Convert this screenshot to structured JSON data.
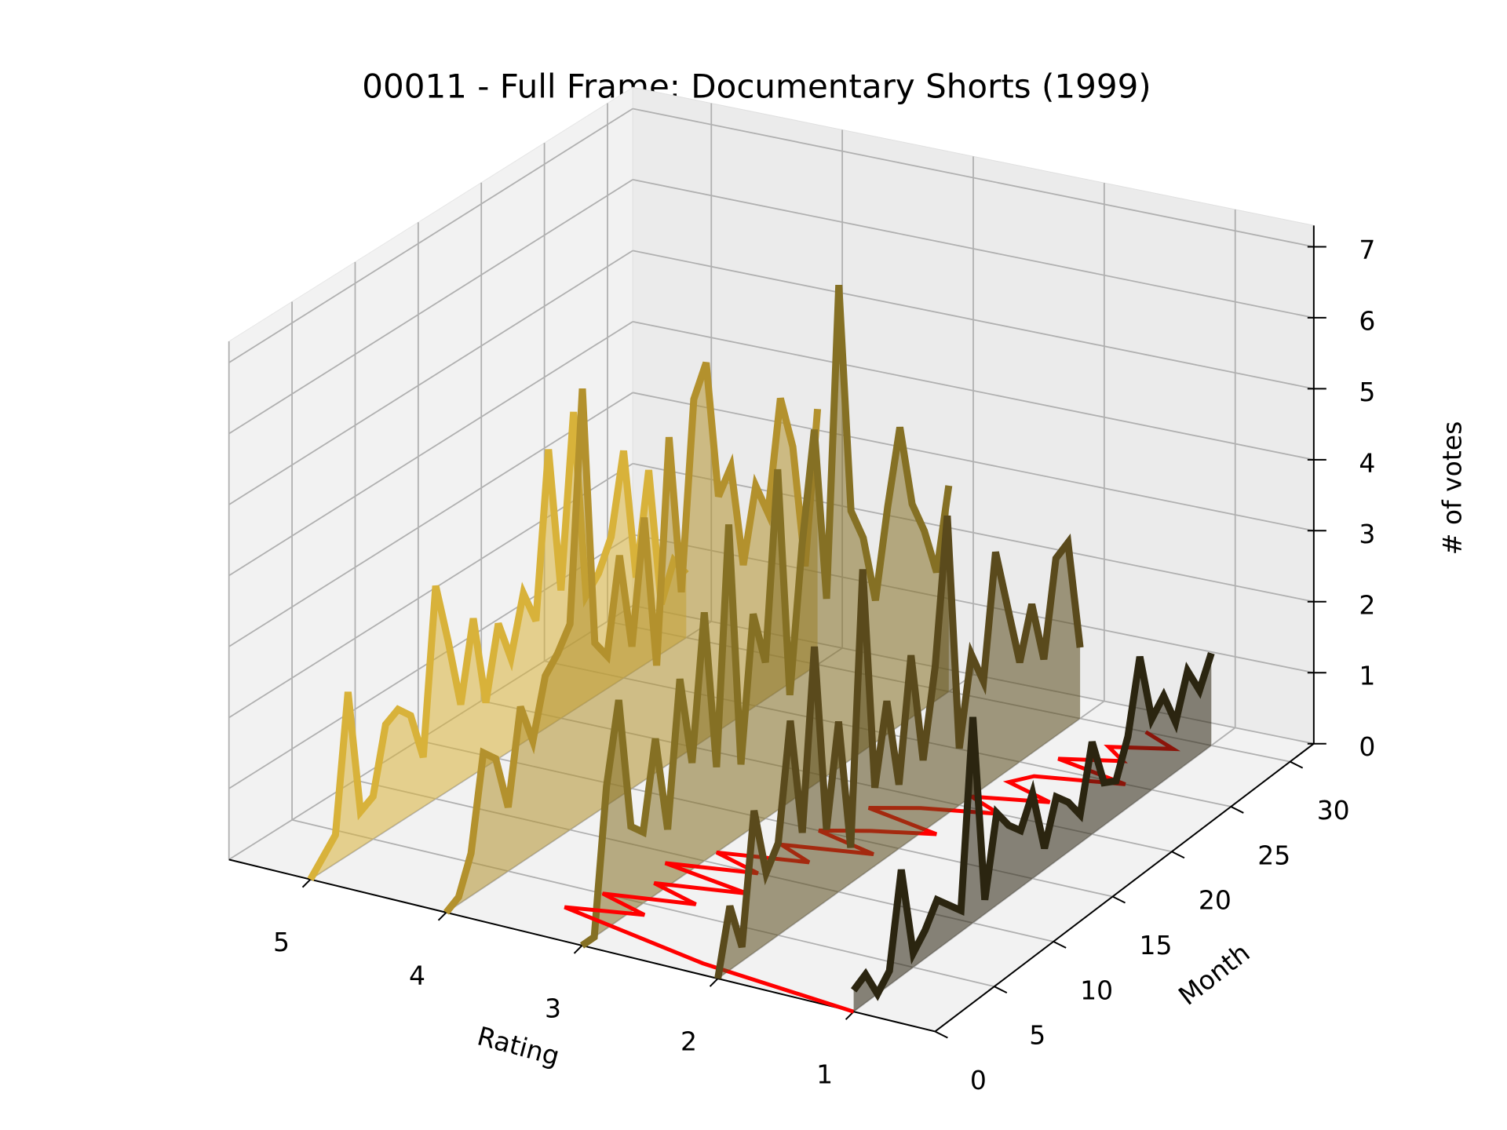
{
  "chart_data": {
    "type": "line3d",
    "title": "00011 - Full Frame: Documentary Shorts (1999)",
    "xlabel": "Rating",
    "ylabel": "Month",
    "zlabel": "# of votes",
    "xlim": [
      0.4,
      5.6
    ],
    "xticks": [
      1,
      2,
      3,
      4,
      5
    ],
    "ylim": [
      0,
      32
    ],
    "yticks": [
      0,
      5,
      10,
      15,
      20,
      25,
      30
    ],
    "zlim": [
      0,
      7.3
    ],
    "zticks": [
      0,
      1,
      2,
      3,
      4,
      5,
      6,
      7
    ],
    "grid": true,
    "x": [
      0,
      1,
      2,
      3,
      4,
      5,
      6,
      7,
      8,
      9,
      10,
      11,
      12,
      13,
      14,
      15,
      16,
      17,
      18,
      19,
      20,
      21,
      22,
      23,
      24,
      25,
      26,
      27,
      28,
      29,
      30
    ],
    "series": [
      {
        "rating": 5,
        "color": "#d8b23a",
        "values": [
          0,
          0.2,
          0.4,
          2.3,
          0.5,
          0.6,
          1.5,
          1.6,
          1.4,
          0.7,
          3.0,
          2.1,
          1.1,
          2.2,
          0.9,
          1.9,
          1.3,
          2.1,
          1.6,
          3.9,
          1.8,
          4.2,
          1.5,
          1.7,
          2.1,
          3.2,
          1.3,
          2.7,
          0.7,
          1.2,
          0.9
        ]
      },
      {
        "rating": 4,
        "color": "#b3912d",
        "values": [
          0,
          0.1,
          0.6,
          1.9,
          1.7,
          0.9,
          2.2,
          1.6,
          2.4,
          2.6,
          2.9,
          6.1,
          2.4,
          2.1,
          3.4,
          2.0,
          3.7,
          1.5,
          4.6,
          2.3,
          4.9,
          5.3,
          3.3,
          3.6,
          2.1,
          3.1,
          2.6,
          4.1,
          3.3,
          1.5,
          3.6
        ]
      },
      {
        "rating": 3,
        "color": "#857024",
        "values": [
          0,
          0,
          2.0,
          3.1,
          1.2,
          1.0,
          2.2,
          0.8,
          2.8,
          1.5,
          3.5,
          1.2,
          4.5,
          1.0,
          3.0,
          2.2,
          4.8,
          1.5,
          3.5,
          5.0,
          2.5,
          6.8,
          3.5,
          3.0,
          2.0,
          3.2,
          4.2,
          3.0,
          2.5,
          1.8,
          2.9
        ]
      },
      {
        "rating": 2,
        "color": "#5a4a1c",
        "values": [
          0,
          0.9,
          0.2,
          2.0,
          1.0,
          1.3,
          2.9,
          1.2,
          3.7,
          1.0,
          2.4,
          0.5,
          4.3,
          1.1,
          2.2,
          0.9,
          2.6,
          1.0,
          2.2,
          4.2,
          0.8,
          2.0,
          1.5,
          3.2,
          2.3,
          1.4,
          2.1,
          1.2,
          2.5,
          2.6,
          1.0
        ]
      },
      {
        "rating": 1,
        "color": "#2b2510",
        "values": [
          0.3,
          0.4,
          0,
          0.2,
          1.5,
          0.2,
          0.4,
          0.7,
          0.5,
          0.3,
          2.9,
          0.2,
          1.3,
          1.0,
          0.8,
          1.2,
          0.3,
          0.9,
          0.7,
          0.4,
          1.3,
          0.6,
          0.5,
          1.0,
          2.0,
          1.0,
          1.2,
          0.7,
          1.3,
          0.9,
          1.3
        ]
      }
    ],
    "mean_line": {
      "color": "#ff0000",
      "values": [
        1.0,
        2.2,
        2.8,
        3.4,
        2.9,
        3.3,
        2.7,
        3.1,
        2.5,
        3.2,
        2.6,
        3.0,
        2.4,
        2.7,
        2.1,
        2.6,
        2.3,
        1.9,
        2.5,
        2.2,
        1.7,
        2.0,
        1.5,
        1.9,
        1.8,
        1.2,
        1.8,
        1.4,
        1.6,
        1.2,
        1.5
      ]
    }
  }
}
